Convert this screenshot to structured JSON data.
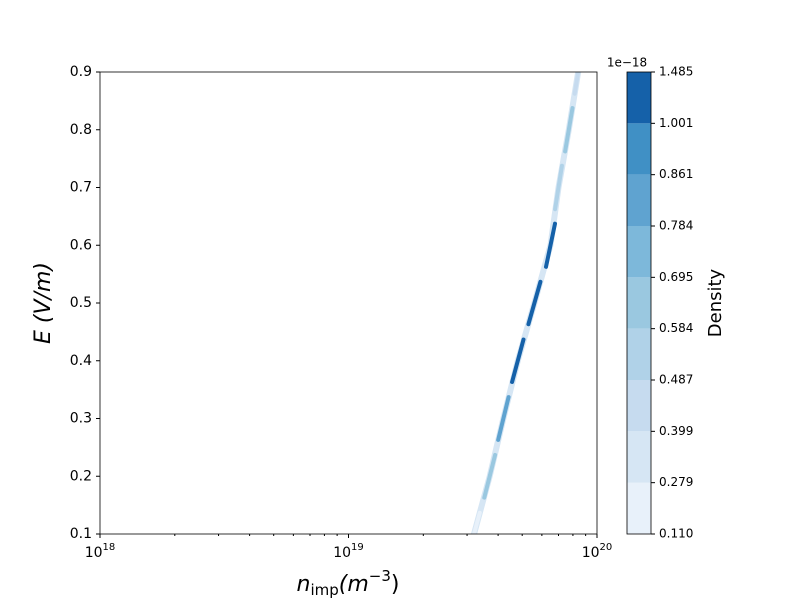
{
  "chart_data": {
    "type": "contour",
    "xlabel": [
      "n",
      "imp",
      "(m",
      "−3",
      ")"
    ],
    "ylabel": [
      "E",
      " (V/m)"
    ],
    "xscale": "log",
    "xlim": [
      1e+18,
      1e+20
    ],
    "ylim": [
      0.1,
      0.9
    ],
    "xticks": [
      {
        "value": 1e+18,
        "label": "10",
        "exponent": "18"
      },
      {
        "value": 1e+19,
        "label": "10",
        "exponent": "19"
      },
      {
        "value": 1e+20,
        "label": "10",
        "exponent": "20"
      }
    ],
    "yticks": [
      0.1,
      0.2,
      0.3,
      0.4,
      0.5,
      0.6,
      0.7,
      0.8,
      0.9
    ],
    "ridge": {
      "x": [
        3.2e+19,
        3.7e+19,
        4.2e+19,
        4.8e+19,
        5.6e+19,
        6.5e+19,
        7e+19,
        7.7e+19,
        8.4e+19
      ],
      "y": [
        0.1,
        0.2,
        0.3,
        0.4,
        0.5,
        0.6,
        0.7,
        0.8,
        0.9
      ],
      "density": [
        0.2,
        0.6,
        0.8,
        1.2,
        1.3,
        1.2,
        0.5,
        0.6,
        0.4
      ]
    },
    "colorbar": {
      "label": "Density",
      "offset": "1e−18",
      "ticks": [
        {
          "value": 0.11,
          "label": "0.110"
        },
        {
          "value": 0.279,
          "label": "0.279"
        },
        {
          "value": 0.399,
          "label": "0.399"
        },
        {
          "value": 0.487,
          "label": "0.487"
        },
        {
          "value": 0.584,
          "label": "0.584"
        },
        {
          "value": 0.695,
          "label": "0.695"
        },
        {
          "value": 0.784,
          "label": "0.784"
        },
        {
          "value": 0.861,
          "label": "0.861"
        },
        {
          "value": 1.001,
          "label": "1.001"
        },
        {
          "value": 1.485,
          "label": "1.485"
        }
      ],
      "colors": [
        "#e8f1fa",
        "#d6e6f4",
        "#c6dbef",
        "#b0d2e8",
        "#9ac8e0",
        "#7db8da",
        "#5fa3d0",
        "#4090c5",
        "#1561a9"
      ]
    }
  }
}
